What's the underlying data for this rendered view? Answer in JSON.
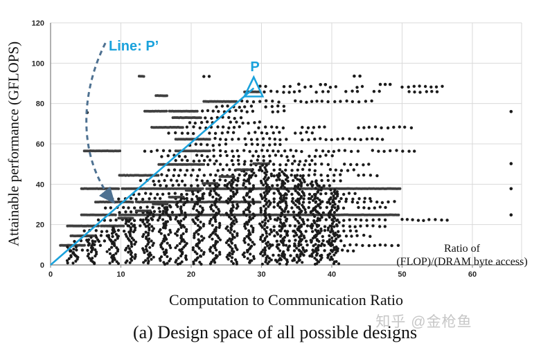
{
  "caption": "(a) Design space of all possible designs",
  "watermark": "知乎 @金枪鱼",
  "chart_data": {
    "type": "scatter",
    "title": "(a) Design space of all possible designs",
    "xlabel": "Computation to Communication Ratio",
    "ylabel": "Attainable performance (GFLOPS)",
    "xlim": [
      0,
      67
    ],
    "ylim": [
      0,
      120
    ],
    "xticks": [
      0,
      10,
      20,
      30,
      40,
      50,
      60
    ],
    "yticks": [
      0,
      20,
      40,
      60,
      80,
      100,
      120
    ],
    "grid": true,
    "legend": false,
    "annotations": {
      "ratio_label_line1": "Ratio of",
      "ratio_label_line2": "(FLOP)/(DRAM byte access)",
      "line_label": "Line: P’",
      "point_label": "P",
      "point_P": [
        28.9,
        87.6
      ],
      "roofline": {
        "from": [
          0,
          0
        ],
        "to": [
          28.9,
          87.6
        ]
      },
      "pprime_curve": {
        "start": [
          7.8,
          110
        ],
        "ctrl": [
          [
            4.2,
            85
          ],
          [
            3.8,
            53
          ]
        ],
        "arrow_end": [
          9,
          31
        ],
        "style": "dashed"
      }
    },
    "colors": {
      "dots": "#1b1b1b",
      "dense_dots": "#3f3f3f",
      "accent": "#1aa2dc",
      "curve": "#4e7191",
      "grid": "#d9d9d9",
      "axis": "#8f8f8f",
      "watermark": "#c7c7c7"
    },
    "rows": [
      [
        93.5,
        [
          [
            12.6,
            13.4,
            "d"
          ],
          [
            21.8,
            23.2,
            "n"
          ]
        ]
      ],
      [
        88.3,
        [
          [
            29.8,
            31,
            "n"
          ],
          [
            33.2,
            34.6,
            "n"
          ],
          [
            36.2,
            37.6,
            "n"
          ],
          [
            39.8,
            40.7,
            "n"
          ],
          [
            43.6,
            44.4,
            "n"
          ],
          [
            50,
            56.5,
            "n"
          ]
        ]
      ],
      [
        85.8,
        [
          [
            27.6,
            29.8,
            "d"
          ],
          [
            30.4,
            36,
            "n"
          ],
          [
            37.8,
            40,
            "n"
          ],
          [
            42,
            44,
            "n"
          ],
          [
            46,
            47.6,
            "n"
          ],
          [
            51,
            55.5,
            "n"
          ]
        ]
      ],
      [
        83.9,
        [
          [
            15,
            16.6,
            "d"
          ]
        ]
      ],
      [
        81,
        [
          [
            21.8,
            26.6,
            "d"
          ],
          [
            27.2,
            33,
            "n"
          ],
          [
            34.8,
            45.8,
            "n"
          ]
        ]
      ],
      [
        78.5,
        [
          [
            23.6,
            28.8,
            "n"
          ],
          [
            30.6,
            33.8,
            "n"
          ]
        ]
      ],
      [
        76.2,
        [
          [
            13.4,
            16.5,
            "d"
          ],
          [
            16.9,
            21,
            "d"
          ],
          [
            21.6,
            29.6,
            "n"
          ],
          [
            31.6,
            33.8,
            "n"
          ]
        ]
      ],
      [
        73,
        [
          [
            17.4,
            21.4,
            "d"
          ],
          [
            22,
            27.8,
            "n"
          ]
        ]
      ],
      [
        70.5,
        [
          [
            19.8,
            23.8,
            "n"
          ],
          [
            25.6,
            29.8,
            "n"
          ]
        ]
      ],
      [
        68.2,
        [
          [
            14.4,
            18.8,
            "d"
          ],
          [
            19.4,
            27.6,
            "n"
          ],
          [
            29.6,
            33.8,
            "n"
          ],
          [
            35.8,
            39.8,
            "n"
          ],
          [
            43.8,
            51.8,
            "n"
          ]
        ]
      ],
      [
        65.4,
        [
          [
            16.8,
            20.8,
            "n"
          ],
          [
            22.6,
            26.8,
            "n"
          ],
          [
            28.2,
            32.8,
            "n"
          ],
          [
            34.8,
            37.8,
            "n"
          ]
        ]
      ],
      [
        62.3,
        [
          [
            17.8,
            22.8,
            "d"
          ],
          [
            23.4,
            33.8,
            "n"
          ],
          [
            35.8,
            47.8,
            "n"
          ]
        ]
      ],
      [
        59.6,
        [
          [
            19.8,
            25.8,
            "n"
          ],
          [
            27.8,
            32.8,
            "n"
          ]
        ]
      ],
      [
        56.5,
        [
          [
            4.8,
            9.9,
            "d"
          ],
          [
            13.4,
            17.4,
            "n"
          ],
          [
            17.8,
            22.8,
            "d"
          ],
          [
            23.2,
            35.8,
            "n"
          ],
          [
            37.8,
            43.8,
            "n"
          ],
          [
            45.8,
            51.8,
            "n"
          ]
        ]
      ],
      [
        54,
        [
          [
            15.8,
            19.8,
            "n"
          ],
          [
            20.8,
            26.8,
            "n"
          ],
          [
            28.8,
            34.8,
            "n"
          ],
          [
            36.8,
            40.8,
            "n"
          ]
        ]
      ],
      [
        51.6,
        [
          [
            17.8,
            23.8,
            "n"
          ],
          [
            25.8,
            31.8,
            "n"
          ],
          [
            33.8,
            37.8,
            "n"
          ]
        ]
      ],
      [
        49.8,
        [
          [
            15.4,
            21.8,
            "d"
          ],
          [
            22.4,
            39.8,
            "n"
          ],
          [
            41.8,
            45.8,
            "n"
          ]
        ]
      ],
      [
        47,
        [
          [
            16.8,
            21.8,
            "n"
          ],
          [
            23.8,
            29.8,
            "n"
          ],
          [
            31.8,
            37.8,
            "n"
          ],
          [
            39.8,
            43.8,
            "n"
          ]
        ]
      ],
      [
        44.4,
        [
          [
            9.8,
            15.4,
            "d"
          ],
          [
            15.8,
            29.8,
            "n"
          ],
          [
            31.8,
            41.8,
            "n"
          ],
          [
            43.8,
            46.8,
            "n"
          ]
        ]
      ],
      [
        41.8,
        [
          [
            12.8,
            18.8,
            "n"
          ],
          [
            20.8,
            27.8,
            "n"
          ],
          [
            29.8,
            35.8,
            "n"
          ],
          [
            37.8,
            41.8,
            "n"
          ]
        ]
      ],
      [
        39.4,
        [
          [
            14.8,
            22.8,
            "n"
          ],
          [
            24.8,
            32.8,
            "n"
          ],
          [
            34.8,
            39.8,
            "n"
          ]
        ]
      ],
      [
        37.8,
        [
          [
            4.4,
            9.8,
            "d"
          ],
          [
            10.2,
            21.8,
            "d"
          ],
          [
            22.2,
            49.8,
            "d"
          ]
        ]
      ],
      [
        35.2,
        [
          [
            11.8,
            19.8,
            "n"
          ],
          [
            21.8,
            29.8,
            "n"
          ],
          [
            31.8,
            43.8,
            "n"
          ]
        ]
      ],
      [
        32.8,
        [
          [
            8.8,
            15.8,
            "n"
          ],
          [
            17.8,
            25.8,
            "n"
          ],
          [
            27.8,
            37.8,
            "n"
          ],
          [
            39.8,
            45.8,
            "n"
          ]
        ]
      ],
      [
        31.2,
        [
          [
            6.4,
            11.8,
            "d"
          ],
          [
            12.2,
            29.8,
            "d"
          ],
          [
            31.8,
            49.8,
            "n"
          ]
        ]
      ],
      [
        28.4,
        [
          [
            7.8,
            17.8,
            "n"
          ],
          [
            19.8,
            29.8,
            "n"
          ],
          [
            31.8,
            41.8,
            "n"
          ],
          [
            43.8,
            47.8,
            "n"
          ]
        ]
      ],
      [
        26.2,
        [
          [
            9.8,
            19.8,
            "n"
          ],
          [
            21.8,
            31.8,
            "n"
          ],
          [
            33.8,
            39.8,
            "n"
          ]
        ]
      ],
      [
        24.8,
        [
          [
            4.4,
            9.4,
            "d"
          ],
          [
            9.8,
            23.8,
            "d"
          ],
          [
            24.2,
            49.6,
            "d"
          ]
        ]
      ],
      [
        22.3,
        [
          [
            6.8,
            17.8,
            "n"
          ],
          [
            19.8,
            33.8,
            "n"
          ],
          [
            35.8,
            47.8,
            "n"
          ],
          [
            50,
            56.6,
            "n"
          ]
        ]
      ],
      [
        19.3,
        [
          [
            2.4,
            6.8,
            "d"
          ],
          [
            8.4,
            10.6,
            "d"
          ],
          [
            11,
            29.8,
            "n"
          ],
          [
            31.8,
            47.8,
            "n"
          ]
        ]
      ],
      [
        16.8,
        [
          [
            4.8,
            15.8,
            "n"
          ],
          [
            17.8,
            29.8,
            "n"
          ],
          [
            31.8,
            43.8,
            "n"
          ]
        ]
      ],
      [
        14.4,
        [
          [
            2.9,
            5.9,
            "d"
          ],
          [
            6.4,
            19.8,
            "n"
          ],
          [
            21.8,
            35.8,
            "n"
          ],
          [
            37.8,
            45.8,
            "n"
          ]
        ]
      ],
      [
        11.9,
        [
          [
            3.4,
            13.8,
            "n"
          ],
          [
            15.8,
            27.8,
            "n"
          ],
          [
            29.8,
            41.8,
            "n"
          ]
        ]
      ],
      [
        9.7,
        [
          [
            2.4,
            4.9,
            "d"
          ],
          [
            5.4,
            23.8,
            "n"
          ],
          [
            25.8,
            39.8,
            "n"
          ],
          [
            41.8,
            49.8,
            "n"
          ]
        ]
      ],
      [
        7.2,
        [
          [
            2.9,
            15.8,
            "n"
          ],
          [
            17.8,
            31.8,
            "n"
          ],
          [
            33.8,
            43.8,
            "n"
          ]
        ]
      ],
      [
        4.7,
        [
          [
            2.9,
            11.8,
            "n"
          ],
          [
            13.8,
            25.8,
            "n"
          ],
          [
            27.8,
            39.8,
            "n"
          ]
        ]
      ],
      [
        2.3,
        [
          [
            2.9,
            9.8,
            "n"
          ],
          [
            11.8,
            21.8,
            "n"
          ],
          [
            23.8,
            35.8,
            "n"
          ]
        ]
      ]
    ],
    "strands": [
      [
        3.1,
        9.7
      ],
      [
        5.9,
        14.4
      ],
      [
        8.9,
        19.3
      ],
      [
        11.4,
        23.2
      ],
      [
        13.9,
        26.8
      ],
      [
        16.3,
        30.2
      ],
      [
        18.6,
        33.6
      ],
      [
        21,
        37
      ],
      [
        23.4,
        40.4
      ],
      [
        25.8,
        43.8
      ],
      [
        28.2,
        47.2
      ],
      [
        30.6,
        50.2
      ],
      [
        33,
        47
      ],
      [
        35.4,
        45
      ],
      [
        37.8,
        42
      ],
      [
        40.2,
        38
      ]
    ],
    "extra_points": [
      [
        65.5,
        76
      ],
      [
        65.5,
        50.2
      ],
      [
        65.5,
        37.8
      ],
      [
        65.5,
        24.8
      ],
      [
        5.2,
        75.5
      ],
      [
        43.2,
        93.6
      ],
      [
        44,
        93.6
      ],
      [
        35.3,
        89.6
      ],
      [
        38.4,
        89.4
      ],
      [
        39.1,
        89.4
      ],
      [
        46.9,
        89.5
      ],
      [
        47.6,
        89.5
      ],
      [
        48.3,
        89.5
      ]
    ]
  }
}
